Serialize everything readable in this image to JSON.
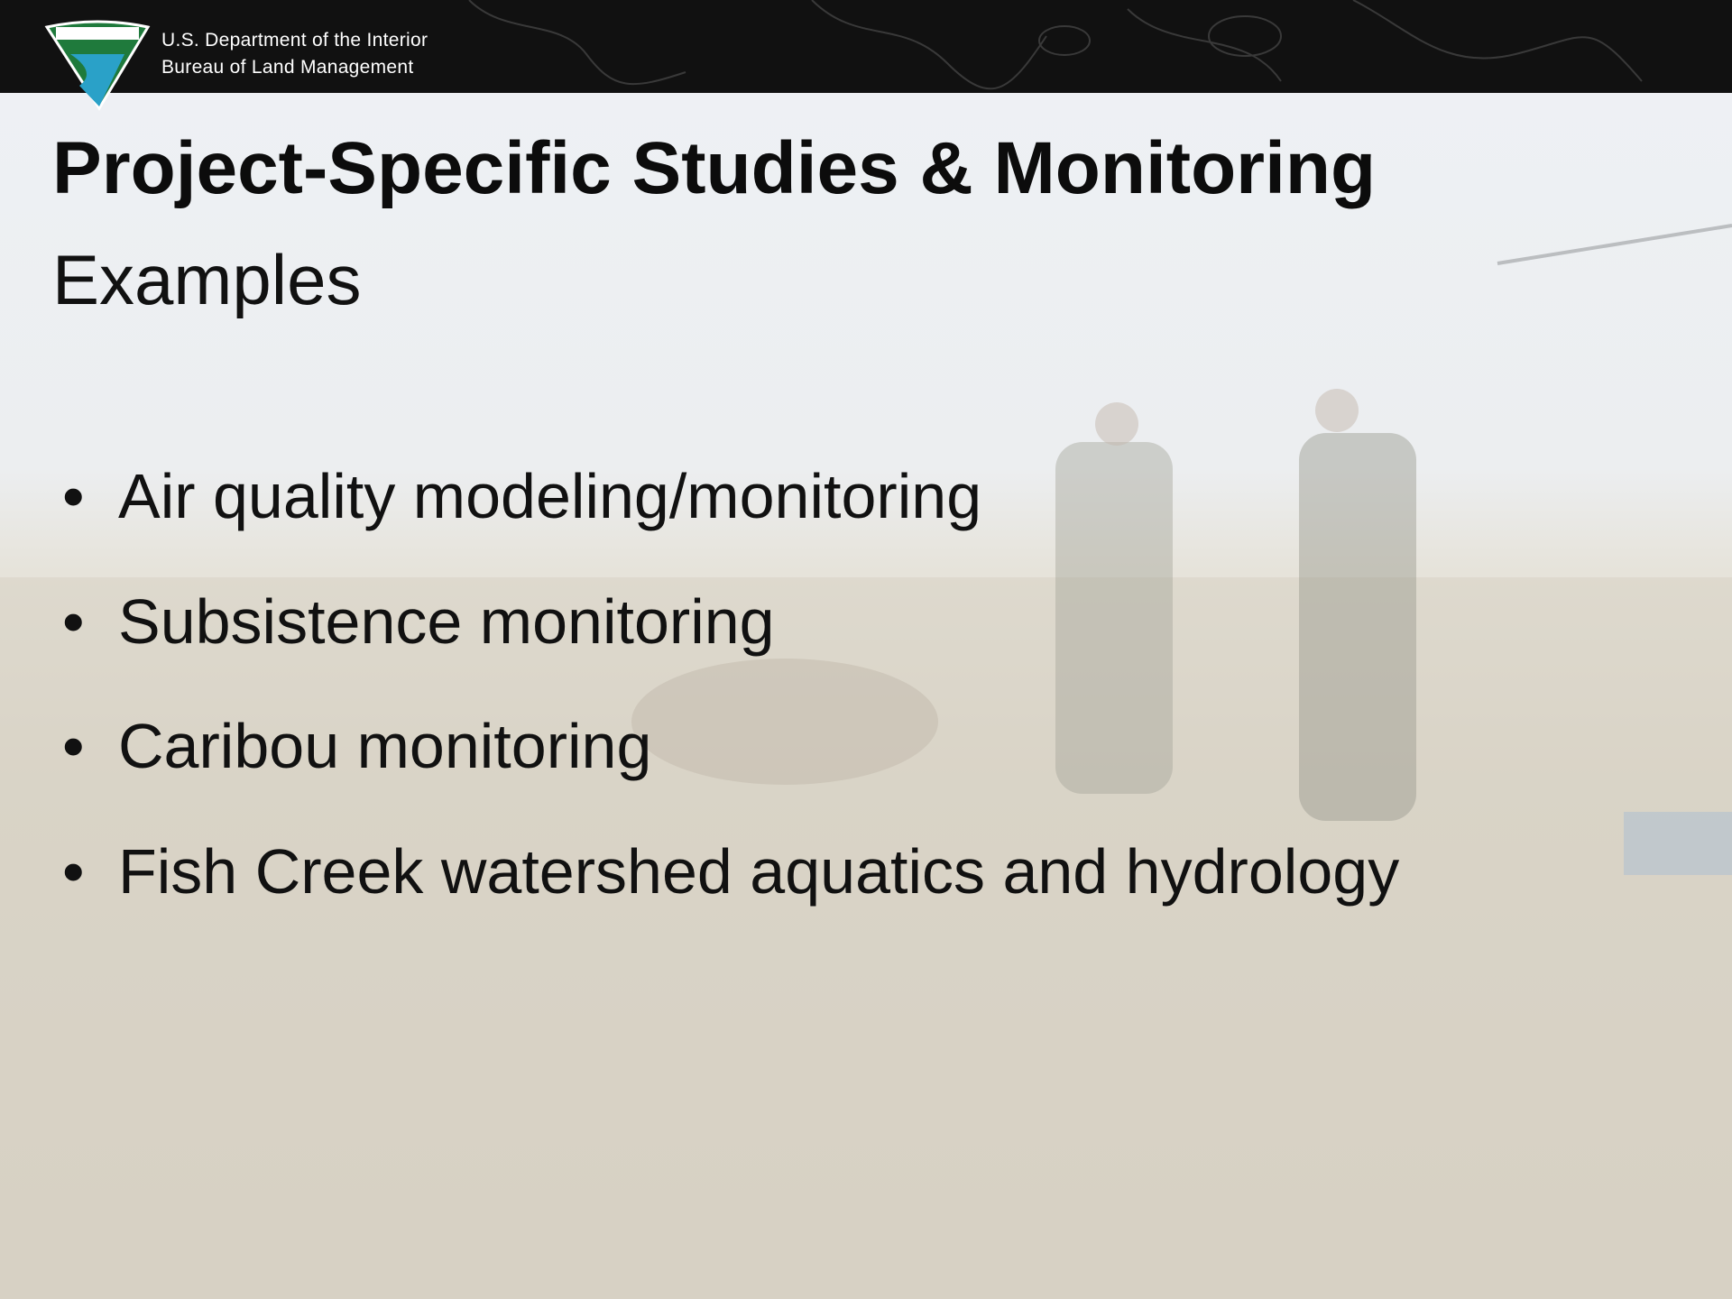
{
  "header": {
    "department": "U.S. Department  of the Interior",
    "bureau": "Bureau of Land Management"
  },
  "title": "Project-Specific Studies & Monitoring",
  "subtitle": "Examples",
  "bullets": [
    "Air quality modeling/monitoring",
    "Subsistence monitoring",
    "Caribou monitoring",
    "Fish Creek watershed aquatics and hydrology"
  ]
}
